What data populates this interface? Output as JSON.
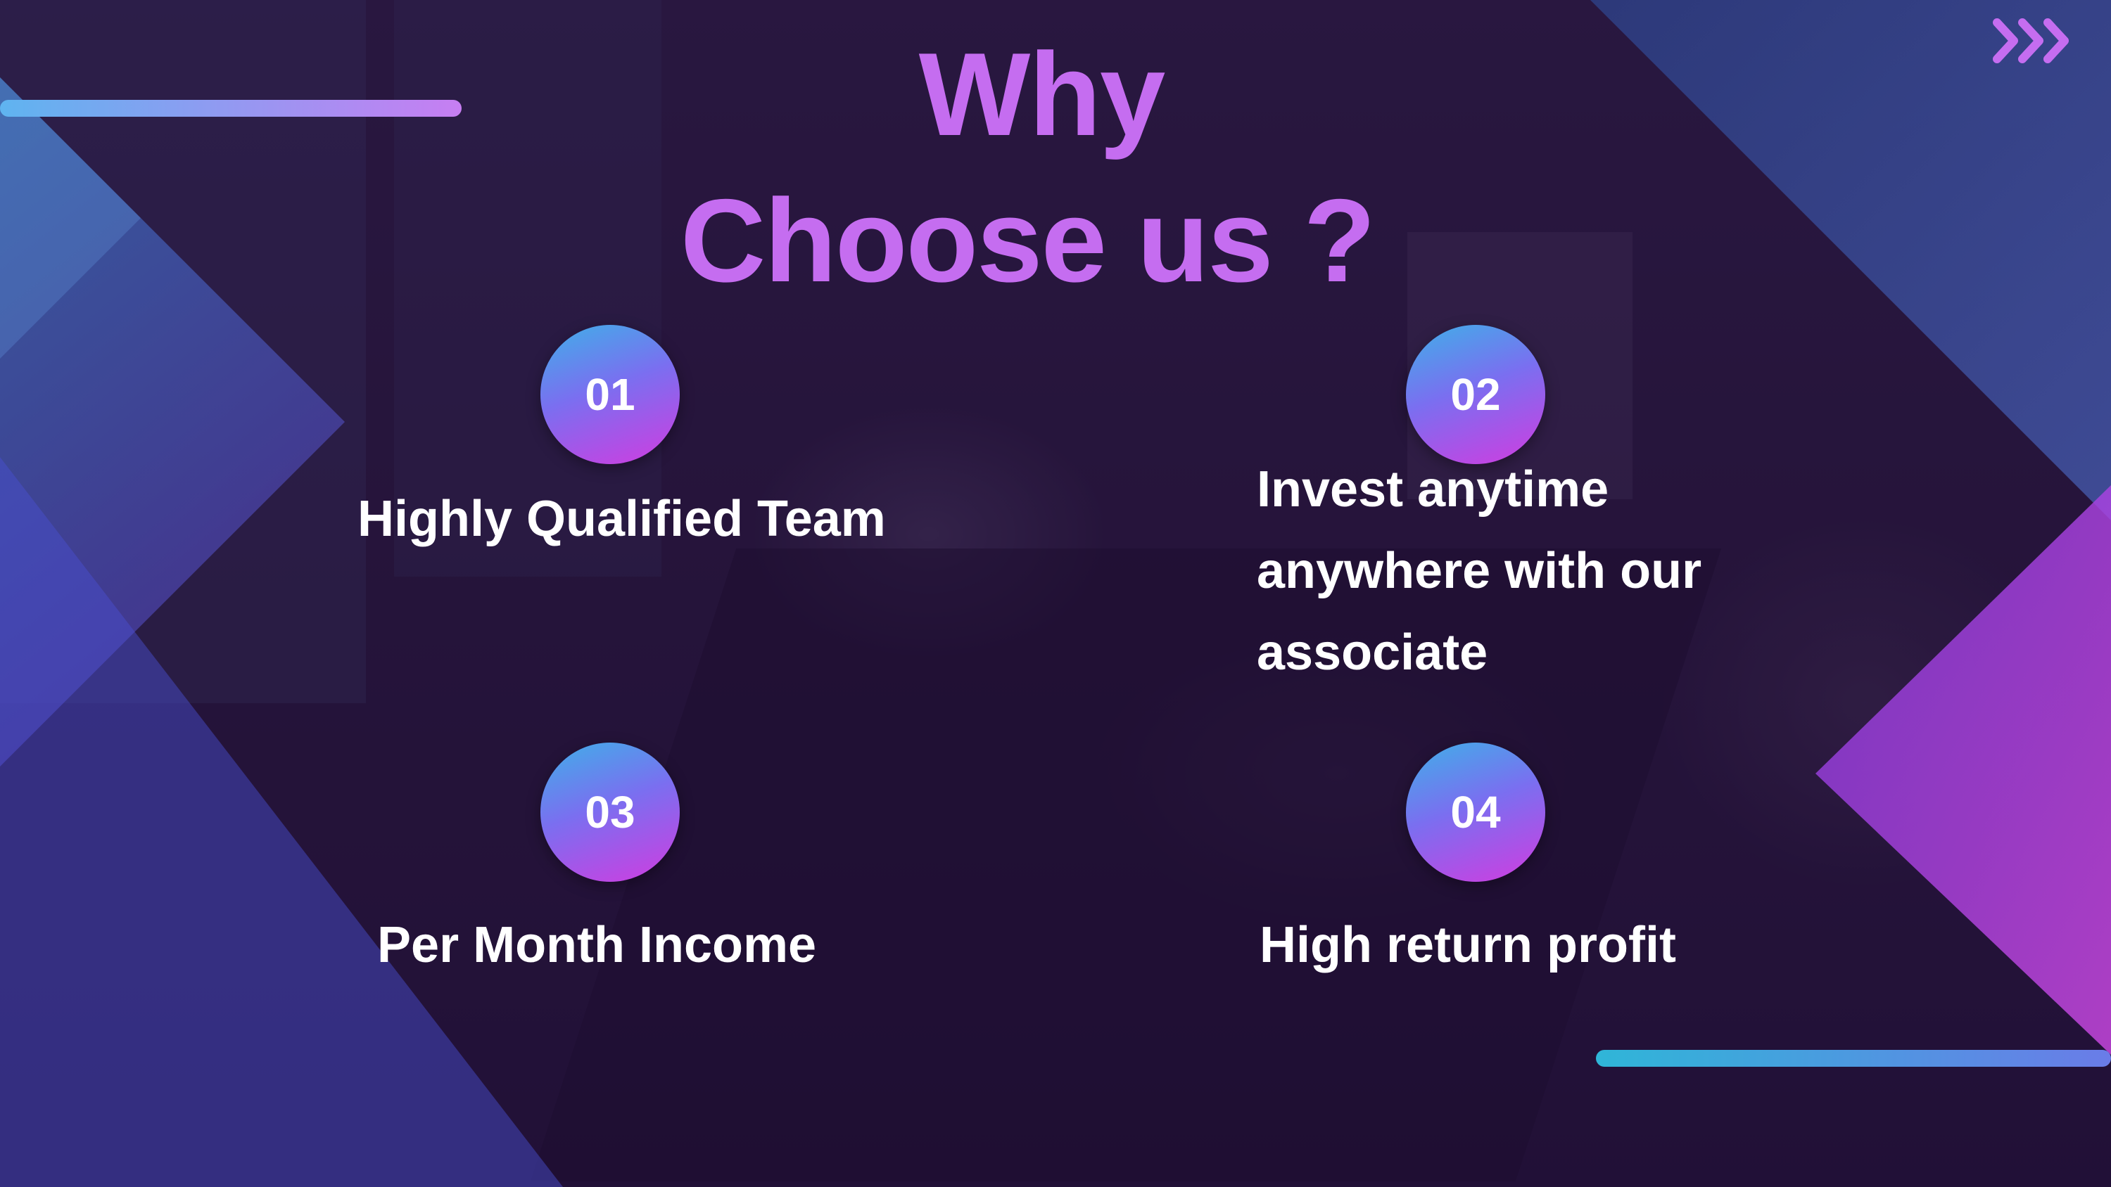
{
  "slide": {
    "title_line1": "Why",
    "title_line2": "Choose us ?",
    "features": [
      {
        "number": "01",
        "text": "Highly Qualified Team"
      },
      {
        "number": "02",
        "text": "Invest anytime anywhere with our associate"
      },
      {
        "number": "03",
        "text": "Per Month Income"
      },
      {
        "number": "04",
        "text": "High return profit"
      }
    ],
    "corner_icon": "triple-chevron-right-icon"
  },
  "colors": {
    "title": "#c56df0",
    "accent_purple": "#b85cf0",
    "accent_blue": "#3d7fe0",
    "accent_cyan": "#2ea7d8",
    "text": "#ffffff"
  }
}
